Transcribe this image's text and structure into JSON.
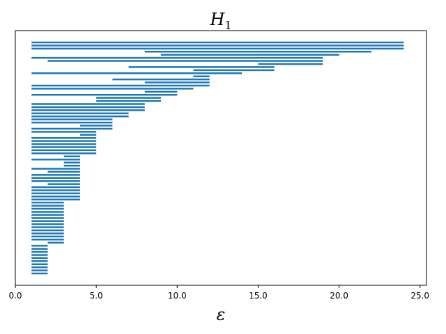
{
  "chart_data": {
    "type": "barcode",
    "title": "H",
    "title_subscript": "1",
    "xlabel": "ε",
    "ylabel": "",
    "xlim": [
      0,
      25.4
    ],
    "xticks": [
      0.0,
      5.0,
      10.0,
      15.0,
      20.0,
      25.0
    ],
    "xtick_labels": [
      "0.0",
      "5.0",
      "10.0",
      "15.0",
      "20.0",
      "25.0"
    ],
    "yticks": false,
    "grid": false,
    "bar_color": "#1f77b4",
    "intervals": [
      [
        1,
        24
      ],
      [
        1,
        24
      ],
      [
        1,
        24
      ],
      [
        8,
        22
      ],
      [
        9,
        20
      ],
      [
        1,
        19
      ],
      [
        2,
        19
      ],
      [
        15,
        19
      ],
      [
        7,
        16
      ],
      [
        11,
        16
      ],
      [
        1,
        14
      ],
      [
        11,
        12
      ],
      [
        6,
        12
      ],
      [
        8,
        12
      ],
      [
        1,
        12
      ],
      [
        1,
        11
      ],
      [
        8,
        10
      ],
      [
        1,
        10
      ],
      [
        5,
        9
      ],
      [
        5,
        9
      ],
      [
        1,
        8
      ],
      [
        1,
        8
      ],
      [
        1,
        8
      ],
      [
        1,
        7
      ],
      [
        1,
        7
      ],
      [
        1,
        6
      ],
      [
        1,
        6
      ],
      [
        4,
        6
      ],
      [
        1,
        6
      ],
      [
        1,
        5
      ],
      [
        4,
        5
      ],
      [
        1,
        5
      ],
      [
        1,
        5
      ],
      [
        1,
        5
      ],
      [
        1,
        5
      ],
      [
        1,
        5
      ],
      [
        1,
        5
      ],
      [
        3,
        4
      ],
      [
        1,
        4
      ],
      [
        3,
        4
      ],
      [
        3,
        4
      ],
      [
        1,
        4
      ],
      [
        2,
        4
      ],
      [
        1,
        4
      ],
      [
        1,
        4
      ],
      [
        1,
        4
      ],
      [
        2,
        4
      ],
      [
        1,
        4
      ],
      [
        1,
        4
      ],
      [
        1,
        4
      ],
      [
        1,
        4
      ],
      [
        1,
        4
      ],
      [
        1,
        3
      ],
      [
        1,
        3
      ],
      [
        1,
        3
      ],
      [
        1,
        3
      ],
      [
        1,
        3
      ],
      [
        1,
        3
      ],
      [
        1,
        3
      ],
      [
        1,
        3
      ],
      [
        1,
        3
      ],
      [
        1,
        3
      ],
      [
        1,
        3
      ],
      [
        1,
        3
      ],
      [
        1,
        3
      ],
      [
        2,
        3
      ],
      [
        1,
        2
      ],
      [
        1,
        2
      ],
      [
        1,
        2
      ],
      [
        1,
        2
      ],
      [
        1,
        2
      ],
      [
        1,
        2
      ],
      [
        1,
        2
      ],
      [
        1,
        2
      ],
      [
        1,
        2
      ],
      [
        1,
        2
      ]
    ]
  }
}
